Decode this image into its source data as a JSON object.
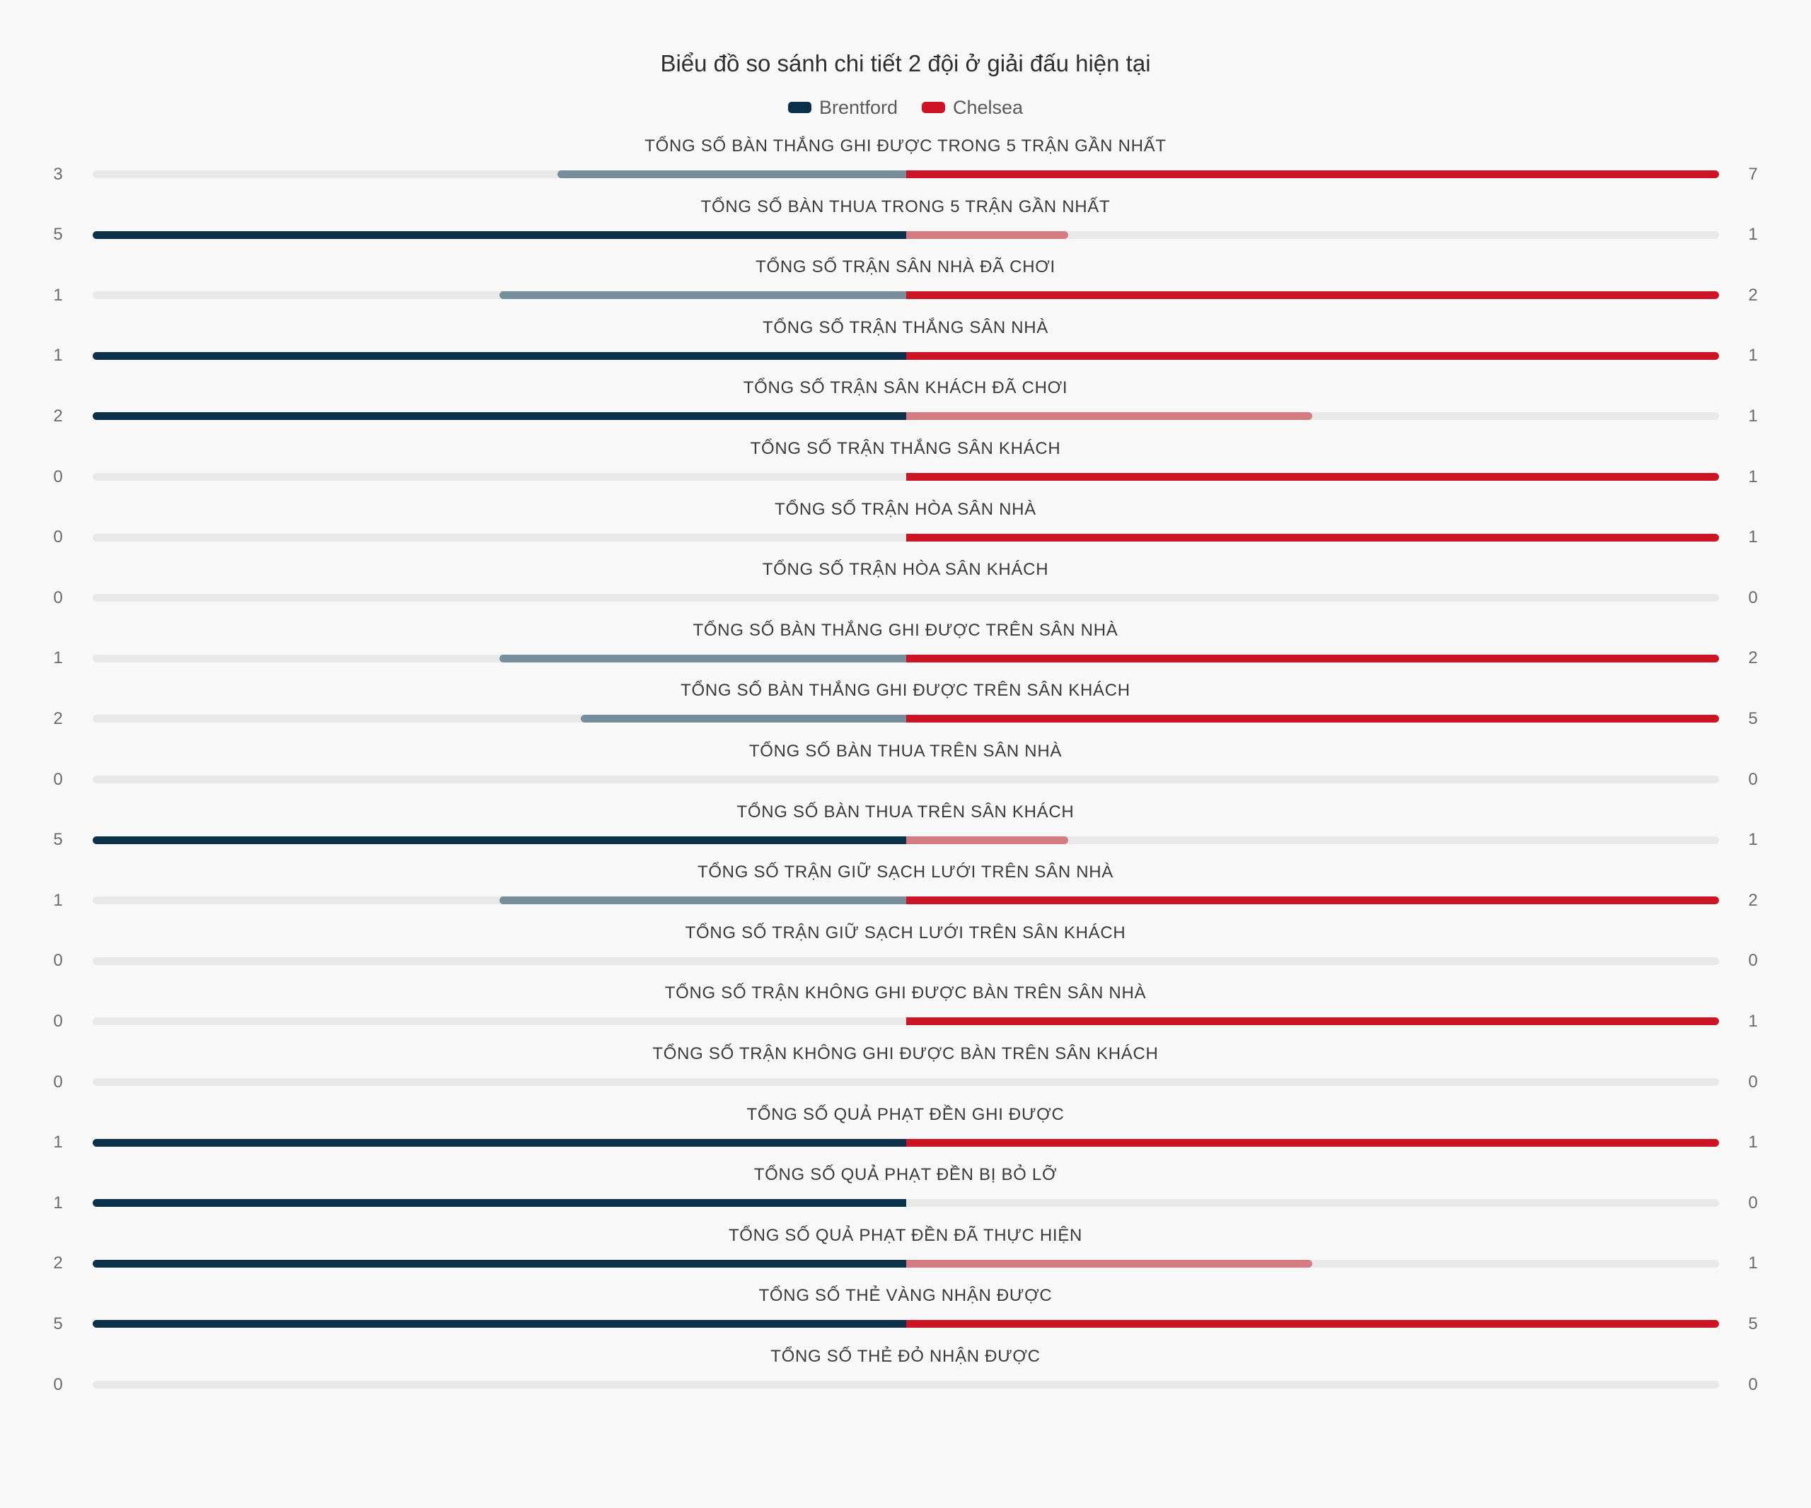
{
  "chart_data": {
    "type": "bar",
    "title": "Biểu đồ so sánh chi tiết 2 đội ở giải đấu hiện tại",
    "xlabel": "",
    "ylabel": "",
    "categories": [
      "TỔNG SỐ BÀN THẮNG GHI ĐƯỢC TRONG 5 TRẬN GẦN NHẤT",
      "TỔNG SỐ BÀN THUA TRONG 5 TRẬN GẦN NHẤT",
      "TỔNG SỐ TRẬN SÂN NHÀ ĐÃ CHƠI",
      "TỔNG SỐ TRẬN THẮNG SÂN NHÀ",
      "TỔNG SỐ TRẬN SÂN KHÁCH ĐÃ CHƠI",
      "TỔNG SỐ TRẬN THẮNG SÂN KHÁCH",
      "TỔNG SỐ TRẬN HÒA SÂN NHÀ",
      "TỔNG SỐ TRẬN HÒA SÂN KHÁCH",
      "TỔNG SỐ BÀN THẮNG GHI ĐƯỢC TRÊN SÂN NHÀ",
      "TỔNG SỐ BÀN THẮNG GHI ĐƯỢC TRÊN SÂN KHÁCH",
      "TỔNG SỐ BÀN THUA TRÊN SÂN NHÀ",
      "TỔNG SỐ BÀN THUA TRÊN SÂN KHÁCH",
      "TỔNG SỐ TRẬN GIỮ SẠCH LƯỚI TRÊN SÂN NHÀ",
      "TỔNG SỐ TRẬN GIỮ SẠCH LƯỚI TRÊN SÂN KHÁCH",
      "TỔNG SỐ TRẬN KHÔNG GHI ĐƯỢC BÀN TRÊN SÂN NHÀ",
      "TỔNG SỐ TRẬN KHÔNG GHI ĐƯỢC BÀN TRÊN SÂN KHÁCH",
      "TỔNG SỐ QUẢ PHẠT ĐỀN GHI ĐƯỢC",
      "TỔNG SỐ QUẢ PHẠT ĐỀN BỊ BỎ LỠ",
      "TỔNG SỐ QUẢ PHẠT ĐỀN ĐÃ THỰC HIỆN",
      "TỔNG SỐ THẺ VÀNG NHẬN ĐƯỢC",
      "TỔNG SỐ THẺ ĐỎ NHẬN ĐƯỢC"
    ],
    "series": [
      {
        "name": "Brentford",
        "values": [
          3,
          5,
          1,
          1,
          2,
          0,
          0,
          0,
          1,
          2,
          0,
          5,
          1,
          0,
          0,
          0,
          1,
          1,
          2,
          5,
          0
        ]
      },
      {
        "name": "Chelsea",
        "values": [
          7,
          1,
          2,
          1,
          1,
          1,
          1,
          0,
          2,
          5,
          0,
          1,
          2,
          0,
          1,
          0,
          1,
          0,
          1,
          5,
          0
        ]
      }
    ]
  },
  "colors": {
    "brentford": "#0b3049",
    "brentford_light": "#768e9b",
    "chelsea": "#cc1424",
    "chelsea_light": "#d57c83",
    "track": "#e8e8e8"
  }
}
